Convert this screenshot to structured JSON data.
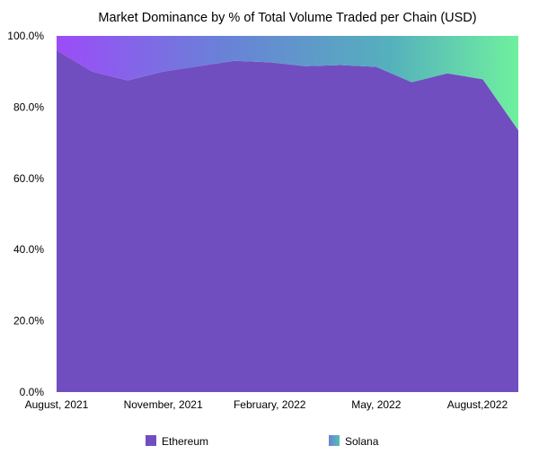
{
  "chart_data": {
    "type": "area",
    "stacked": true,
    "normalized": true,
    "title": "Market Dominance by % of Total Volume Traded per Chain (USD)",
    "xlabel": "",
    "ylabel": "",
    "x_ticks": [
      "August, 2021",
      "November, 2021",
      "February, 2022",
      "May, 2022",
      "August,2022"
    ],
    "x": [
      "2021-08",
      "2021-09",
      "2021-10",
      "2021-11",
      "2021-12",
      "2022-01",
      "2022-02",
      "2022-03",
      "2022-04",
      "2022-05",
      "2022-06",
      "2022-07",
      "2022-08",
      "2022-09"
    ],
    "ylim": [
      0,
      100
    ],
    "y_ticks": [
      "0.0%",
      "20.0%",
      "40.0%",
      "60.0%",
      "80.0%",
      "100.0%"
    ],
    "grid": false,
    "legend_position": "bottom",
    "series": [
      {
        "name": "Ethereum",
        "color": "#714ec0",
        "values": [
          96.0,
          90.0,
          87.5,
          90.0,
          91.5,
          93.0,
          92.6,
          91.5,
          91.8,
          91.3,
          87.0,
          89.5,
          87.8,
          73.5
        ]
      },
      {
        "name": "Solana",
        "color": "#6aa7c4",
        "values": [
          4.0,
          10.0,
          12.5,
          10.0,
          8.5,
          7.0,
          7.4,
          8.5,
          8.2,
          8.7,
          13.0,
          10.5,
          12.2,
          26.5
        ]
      }
    ]
  }
}
